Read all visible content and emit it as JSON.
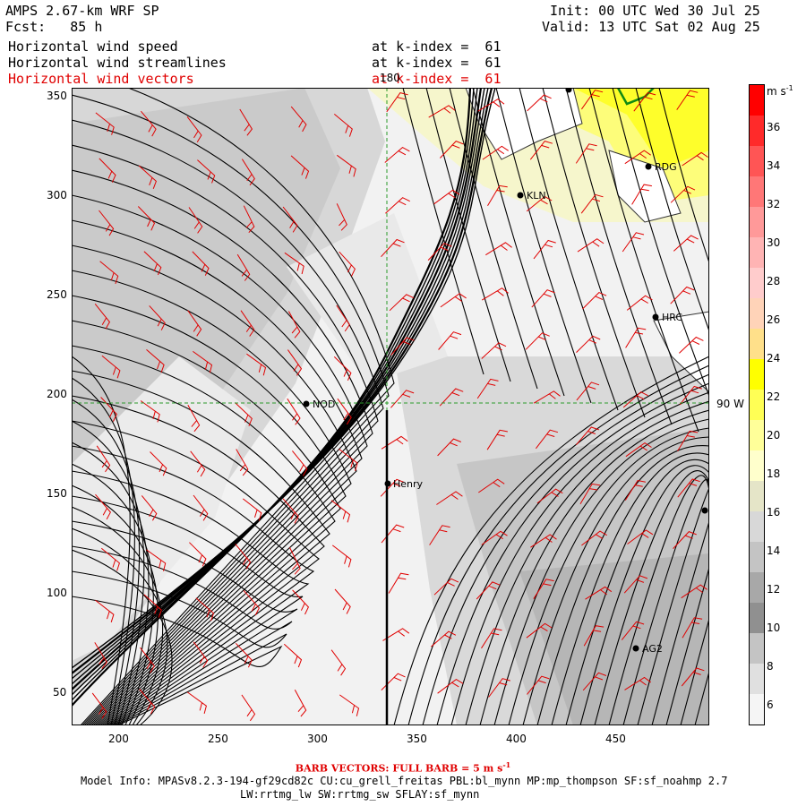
{
  "header": {
    "model": "AMPS 2.67-km WRF SP",
    "forecast": "Fcst:   85 h",
    "init": "Init: 00 UTC Wed 30 Jul 25",
    "valid": "Valid: 13 UTC Sat 02 Aug 25",
    "layers": [
      {
        "name": "Horizontal wind speed",
        "level": "at k-index =  61"
      },
      {
        "name": "Horizontal wind streamlines",
        "level": "at k-index =  61"
      },
      {
        "name": "Horizontal wind vectors",
        "level": "at k-index =  61"
      }
    ]
  },
  "map": {
    "x_ticks": [
      "200",
      "250",
      "300",
      "350",
      "400",
      "450"
    ],
    "y_ticks": [
      "350",
      "300",
      "250",
      "200",
      "150",
      "100",
      "50"
    ],
    "meridian_label": "180",
    "parallel_label": "90 W",
    "stations": [
      {
        "id": "RDG"
      },
      {
        "id": "KLN"
      },
      {
        "id": "HRC"
      },
      {
        "id": "NOD"
      },
      {
        "id": "Henry"
      },
      {
        "id": "AG2"
      }
    ]
  },
  "colorbar": {
    "unit": "m s",
    "unit_exp": "-1",
    "labels": [
      "36",
      "34",
      "32",
      "30",
      "28",
      "26",
      "24",
      "22",
      "20",
      "18",
      "16",
      "14",
      "12",
      "10",
      "8",
      "6"
    ],
    "colors": [
      "#ff0000",
      "#ff2a2a",
      "#ff5555",
      "#ff7777",
      "#ff9999",
      "#ffb4b4",
      "#ffcccc",
      "#ffd3b8",
      "#ffe08a",
      "#ffff00",
      "#ffff55",
      "#ffff99",
      "#ffffcc",
      "#e5e5c8",
      "#d8d8d8",
      "#c4c4c4",
      "#a8a8a8",
      "#909090",
      "#c4c4c4",
      "#e0e0e0",
      "#f5f5f5"
    ]
  },
  "footer": {
    "barb": "BARB VECTORS:  FULL BARB = 5 m s",
    "barb_exp": "-1",
    "model_info": "Model Info: MPASv8.2.3-194-gf29cd82c CU:cu_grell_freitas PBL:bl_mynn MP:mp_thompson SF:sf_noahmp 2.7",
    "model_info2": "LW:rrtmg_lw SW:rrtmg_sw SFLAY:sf_mynn"
  }
}
